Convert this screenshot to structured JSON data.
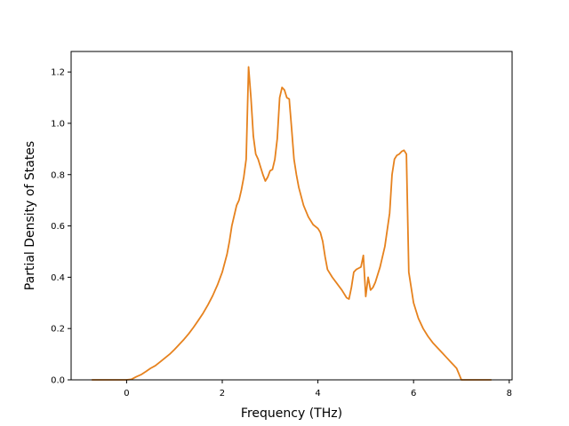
{
  "colors": {
    "series": "#e6821e",
    "axes": "#000000",
    "background": "#ffffff"
  },
  "chart_data": {
    "type": "line",
    "title": "",
    "xlabel": "Frequency (THz)",
    "ylabel": "Partial Density of States",
    "xlim": [
      -1.16,
      8.06
    ],
    "ylim": [
      0,
      1.28
    ],
    "xticks": [
      0,
      2,
      4,
      6,
      8
    ],
    "yticks": [
      0.0,
      0.2,
      0.4,
      0.6,
      0.8,
      1.0,
      1.2
    ],
    "xtick_labels": [
      "0",
      "2",
      "4",
      "6",
      "8"
    ],
    "ytick_labels": [
      "0.0",
      "0.2",
      "0.4",
      "0.6",
      "0.8",
      "1.0",
      "1.2"
    ],
    "grid": false,
    "legend": "none",
    "series": [
      {
        "x": [
          -0.72,
          -0.4,
          0.0,
          0.1,
          0.2,
          0.3,
          0.4,
          0.5,
          0.6,
          0.7,
          0.8,
          0.9,
          1.0,
          1.1,
          1.2,
          1.3,
          1.4,
          1.5,
          1.6,
          1.7,
          1.8,
          1.9,
          2.0,
          2.1,
          2.15,
          2.2,
          2.25,
          2.3,
          2.35,
          2.4,
          2.45,
          2.5,
          2.55,
          2.6,
          2.65,
          2.7,
          2.75,
          2.8,
          2.85,
          2.9,
          2.95,
          3.0,
          3.05,
          3.1,
          3.15,
          3.2,
          3.25,
          3.3,
          3.35,
          3.4,
          3.45,
          3.5,
          3.55,
          3.6,
          3.7,
          3.8,
          3.9,
          4.0,
          4.05,
          4.1,
          4.15,
          4.2,
          4.3,
          4.4,
          4.5,
          4.6,
          4.65,
          4.7,
          4.75,
          4.8,
          4.85,
          4.9,
          4.95,
          5.0,
          5.05,
          5.1,
          5.15,
          5.2,
          5.3,
          5.4,
          5.5,
          5.55,
          5.6,
          5.65,
          5.7,
          5.75,
          5.8,
          5.85,
          5.9,
          6.0,
          6.1,
          6.2,
          6.3,
          6.4,
          6.5,
          6.6,
          6.7,
          6.8,
          6.9,
          7.0,
          7.2,
          7.62
        ],
        "values": [
          0.0,
          0.0,
          0.0,
          0.002,
          0.012,
          0.02,
          0.032,
          0.045,
          0.055,
          0.07,
          0.085,
          0.1,
          0.118,
          0.138,
          0.158,
          0.18,
          0.205,
          0.232,
          0.26,
          0.292,
          0.328,
          0.37,
          0.42,
          0.49,
          0.54,
          0.6,
          0.64,
          0.68,
          0.7,
          0.74,
          0.79,
          0.86,
          1.22,
          1.1,
          0.95,
          0.88,
          0.86,
          0.83,
          0.8,
          0.775,
          0.79,
          0.815,
          0.82,
          0.86,
          0.94,
          1.1,
          1.14,
          1.13,
          1.1,
          1.095,
          0.98,
          0.86,
          0.8,
          0.75,
          0.68,
          0.635,
          0.605,
          0.59,
          0.575,
          0.54,
          0.48,
          0.43,
          0.4,
          0.375,
          0.35,
          0.32,
          0.315,
          0.36,
          0.42,
          0.43,
          0.435,
          0.44,
          0.485,
          0.325,
          0.4,
          0.35,
          0.36,
          0.38,
          0.44,
          0.52,
          0.65,
          0.8,
          0.86,
          0.875,
          0.88,
          0.89,
          0.895,
          0.88,
          0.42,
          0.3,
          0.24,
          0.2,
          0.17,
          0.145,
          0.125,
          0.105,
          0.085,
          0.065,
          0.045,
          0.0,
          0.0,
          0.0
        ]
      }
    ]
  }
}
